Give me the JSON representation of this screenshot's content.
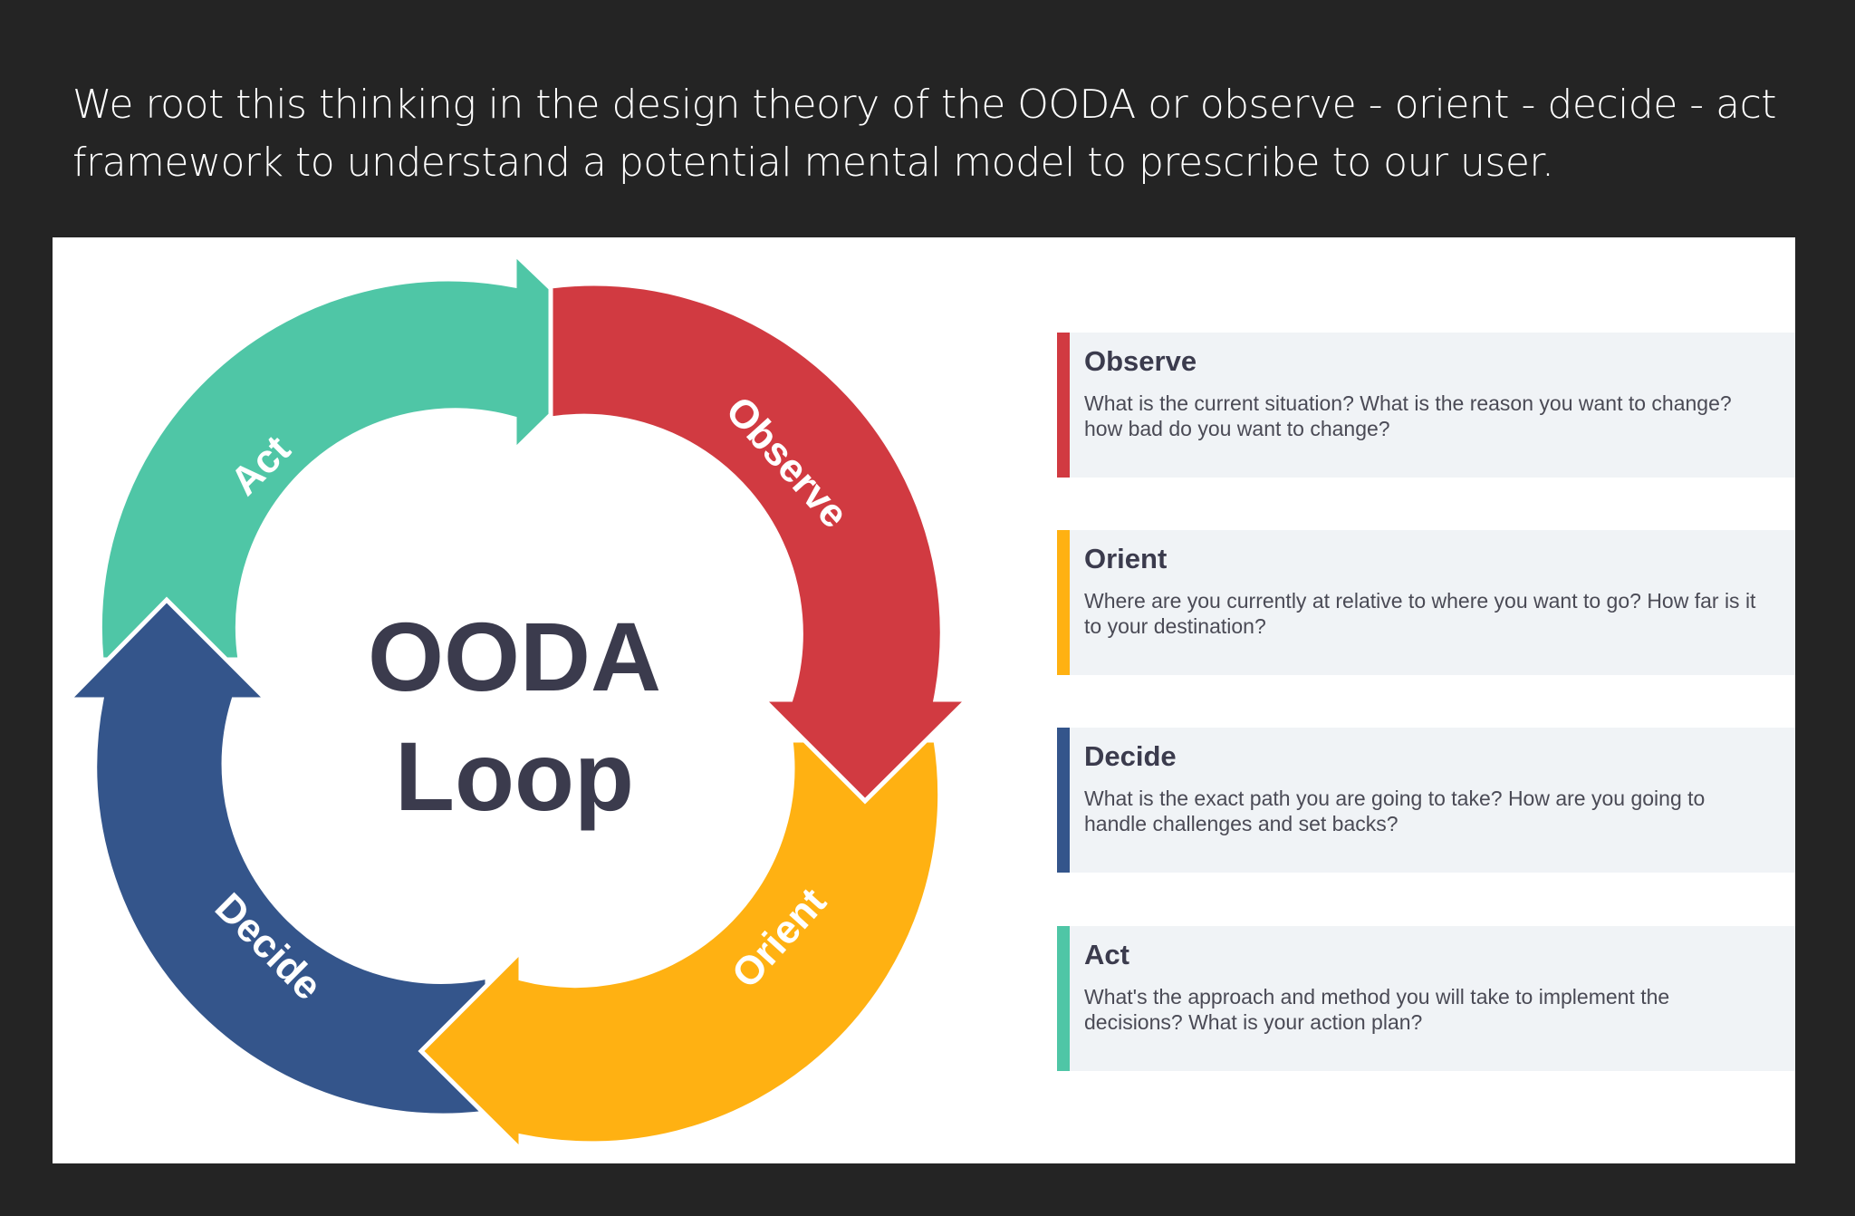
{
  "intro_text": "We root this thinking in the design theory of the OODA or observe - orient - decide - act framework to understand a potential mental model to prescribe to our user.",
  "diagram": {
    "center_line1": "OODA",
    "center_line2": "Loop",
    "arcs": [
      {
        "label": "Observe",
        "color": "#d13a41"
      },
      {
        "label": "Orient",
        "color": "#ffb112"
      },
      {
        "label": "Decide",
        "color": "#34558b"
      },
      {
        "label": "Act",
        "color": "#4fc6a6"
      }
    ]
  },
  "cards": [
    {
      "title": "Observe",
      "description": "What is the current situation? What is the reason you want to change? how bad do you want to change?",
      "color": "#d13a41"
    },
    {
      "title": "Orient",
      "description": "Where are you currently at relative to where you want to go? How far is it to your destination?",
      "color": "#ffb112"
    },
    {
      "title": "Decide",
      "description": "What is the exact path you are going to take? How are you going to handle challenges and set backs?",
      "color": "#34558b"
    },
    {
      "title": "Act",
      "description": "What's the approach and method you will take to implement the decisions? What is your action plan?",
      "color": "#4fc6a6"
    }
  ]
}
